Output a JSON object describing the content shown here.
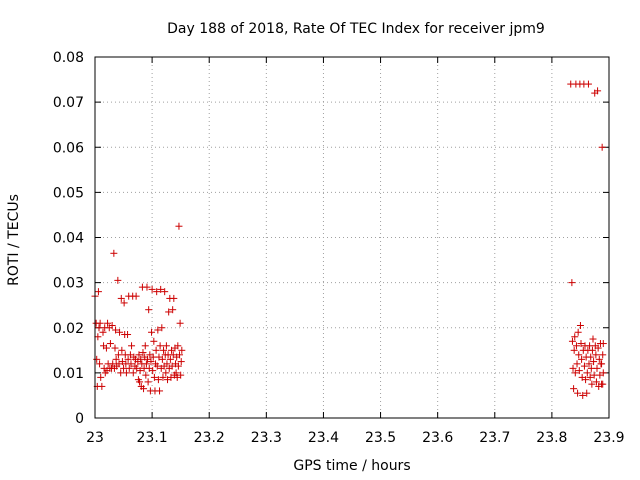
{
  "chart_data": {
    "type": "scatter",
    "title": "Day 188 of 2018, Rate Of TEC Index for receiver jpm9",
    "xlabel": "GPS time / hours",
    "ylabel": "ROTI / TECUs",
    "xlim": [
      23,
      23.9
    ],
    "ylim": [
      0,
      0.08
    ],
    "grid": true,
    "x_ticks": [
      {
        "value": 23.0,
        "label": "23"
      },
      {
        "value": 23.1,
        "label": "23.1"
      },
      {
        "value": 23.2,
        "label": "23.2"
      },
      {
        "value": 23.3,
        "label": "23.3"
      },
      {
        "value": 23.4,
        "label": "23.4"
      },
      {
        "value": 23.5,
        "label": "23.5"
      },
      {
        "value": 23.6,
        "label": "23.6"
      },
      {
        "value": 23.7,
        "label": "23.7"
      },
      {
        "value": 23.8,
        "label": "23.8"
      },
      {
        "value": 23.9,
        "label": "23.9"
      }
    ],
    "y_ticks": [
      {
        "value": 0.0,
        "label": "0"
      },
      {
        "value": 0.01,
        "label": "0.01"
      },
      {
        "value": 0.02,
        "label": "0.02"
      },
      {
        "value": 0.03,
        "label": "0.03"
      },
      {
        "value": 0.04,
        "label": "0.04"
      },
      {
        "value": 0.05,
        "label": "0.05"
      },
      {
        "value": 0.06,
        "label": "0.06"
      },
      {
        "value": 0.07,
        "label": "0.07"
      },
      {
        "value": 0.08,
        "label": "0.08"
      }
    ],
    "series": [
      {
        "name": "ROTI",
        "color": "#cc0000",
        "marker": "plus",
        "points": [
          [
            23.0,
            0.027
          ],
          [
            23.002,
            0.021
          ],
          [
            23.003,
            0.013
          ],
          [
            23.004,
            0.007
          ],
          [
            23.005,
            0.018
          ],
          [
            23.006,
            0.028
          ],
          [
            23.007,
            0.02
          ],
          [
            23.008,
            0.012
          ],
          [
            23.009,
            0.021
          ],
          [
            23.01,
            0.009
          ],
          [
            23.012,
            0.007
          ],
          [
            23.014,
            0.019
          ],
          [
            23.015,
            0.016
          ],
          [
            23.016,
            0.011
          ],
          [
            23.017,
            0.02
          ],
          [
            23.018,
            0.01
          ],
          [
            23.02,
            0.0155
          ],
          [
            23.021,
            0.0105
          ],
          [
            23.022,
            0.021
          ],
          [
            23.023,
            0.012
          ],
          [
            23.025,
            0.02
          ],
          [
            23.026,
            0.011
          ],
          [
            23.027,
            0.0165
          ],
          [
            23.029,
            0.011
          ],
          [
            23.03,
            0.0205
          ],
          [
            23.031,
            0.012
          ],
          [
            23.033,
            0.0365
          ],
          [
            23.034,
            0.011
          ],
          [
            23.035,
            0.0155
          ],
          [
            23.036,
            0.0195
          ],
          [
            23.037,
            0.013
          ],
          [
            23.038,
            0.0115
          ],
          [
            23.04,
            0.0305
          ],
          [
            23.041,
            0.014
          ],
          [
            23.042,
            0.012
          ],
          [
            23.043,
            0.019
          ],
          [
            23.045,
            0.01
          ],
          [
            23.046,
            0.0265
          ],
          [
            23.047,
            0.015
          ],
          [
            23.048,
            0.0125
          ],
          [
            23.05,
            0.011
          ],
          [
            23.051,
            0.0255
          ],
          [
            23.052,
            0.0185
          ],
          [
            23.053,
            0.014
          ],
          [
            23.054,
            0.012
          ],
          [
            23.055,
            0.01
          ],
          [
            23.057,
            0.0185
          ],
          [
            23.058,
            0.013
          ],
          [
            23.059,
            0.027
          ],
          [
            23.06,
            0.011
          ],
          [
            23.062,
            0.014
          ],
          [
            23.063,
            0.012
          ],
          [
            23.064,
            0.016
          ],
          [
            23.066,
            0.027
          ],
          [
            23.067,
            0.01
          ],
          [
            23.068,
            0.0135
          ],
          [
            23.07,
            0.0115
          ],
          [
            23.071,
            0.013
          ],
          [
            23.072,
            0.027
          ],
          [
            23.073,
            0.011
          ],
          [
            23.075,
            0.0125
          ],
          [
            23.076,
            0.0085
          ],
          [
            23.077,
            0.014
          ],
          [
            23.078,
            0.008
          ],
          [
            23.079,
            0.0105
          ],
          [
            23.08,
            0.013
          ],
          [
            23.081,
            0.007
          ],
          [
            23.082,
            0.012
          ],
          [
            23.083,
            0.029
          ],
          [
            23.084,
            0.0145
          ],
          [
            23.085,
            0.0065
          ],
          [
            23.086,
            0.011
          ],
          [
            23.087,
            0.0135
          ],
          [
            23.088,
            0.016
          ],
          [
            23.089,
            0.0095
          ],
          [
            23.09,
            0.012
          ],
          [
            23.091,
            0.029
          ],
          [
            23.092,
            0.013
          ],
          [
            23.093,
            0.008
          ],
          [
            23.094,
            0.024
          ],
          [
            23.095,
            0.011
          ],
          [
            23.096,
            0.014
          ],
          [
            23.097,
            0.006
          ],
          [
            23.098,
            0.0125
          ],
          [
            23.099,
            0.019
          ],
          [
            23.1,
            0.0285
          ],
          [
            23.101,
            0.0105
          ],
          [
            23.102,
            0.0135
          ],
          [
            23.103,
            0.017
          ],
          [
            23.104,
            0.009
          ],
          [
            23.105,
            0.006
          ],
          [
            23.106,
            0.012
          ],
          [
            23.107,
            0.015
          ],
          [
            23.108,
            0.028
          ],
          [
            23.109,
            0.0115
          ],
          [
            23.11,
            0.0195
          ],
          [
            23.111,
            0.0085
          ],
          [
            23.112,
            0.0135
          ],
          [
            23.113,
            0.006
          ],
          [
            23.114,
            0.016
          ],
          [
            23.115,
            0.0285
          ],
          [
            23.116,
            0.011
          ],
          [
            23.117,
            0.02
          ],
          [
            23.118,
            0.013
          ],
          [
            23.119,
            0.009
          ],
          [
            23.12,
            0.015
          ],
          [
            23.121,
            0.0115
          ],
          [
            23.122,
            0.028
          ],
          [
            23.123,
            0.014
          ],
          [
            23.124,
            0.01
          ],
          [
            23.125,
            0.016
          ],
          [
            23.126,
            0.012
          ],
          [
            23.127,
            0.0085
          ],
          [
            23.128,
            0.014
          ],
          [
            23.129,
            0.0235
          ],
          [
            23.13,
            0.011
          ],
          [
            23.131,
            0.0265
          ],
          [
            23.132,
            0.013
          ],
          [
            23.133,
            0.009
          ],
          [
            23.134,
            0.015
          ],
          [
            23.135,
            0.0115
          ],
          [
            23.136,
            0.024
          ],
          [
            23.137,
            0.014
          ],
          [
            23.138,
            0.0265
          ],
          [
            23.139,
            0.0095
          ],
          [
            23.14,
            0.0155
          ],
          [
            23.141,
            0.012
          ],
          [
            23.142,
            0.01
          ],
          [
            23.143,
            0.0135
          ],
          [
            23.144,
            0.009
          ],
          [
            23.145,
            0.016
          ],
          [
            23.146,
            0.0115
          ],
          [
            23.147,
            0.0425
          ],
          [
            23.148,
            0.014
          ],
          [
            23.149,
            0.021
          ],
          [
            23.15,
            0.0095
          ],
          [
            23.151,
            0.0125
          ],
          [
            23.152,
            0.015
          ],
          [
            23.833,
            0.074
          ],
          [
            23.835,
            0.03
          ],
          [
            23.836,
            0.017
          ],
          [
            23.837,
            0.011
          ],
          [
            23.838,
            0.0065
          ],
          [
            23.839,
            0.015
          ],
          [
            23.84,
            0.018
          ],
          [
            23.841,
            0.01
          ],
          [
            23.842,
            0.074
          ],
          [
            23.843,
            0.016
          ],
          [
            23.844,
            0.012
          ],
          [
            23.845,
            0.0055
          ],
          [
            23.846,
            0.019
          ],
          [
            23.847,
            0.014
          ],
          [
            23.848,
            0.0105
          ],
          [
            23.849,
            0.074
          ],
          [
            23.85,
            0.0205
          ],
          [
            23.851,
            0.0165
          ],
          [
            23.852,
            0.013
          ],
          [
            23.853,
            0.009
          ],
          [
            23.854,
            0.005
          ],
          [
            23.855,
            0.015
          ],
          [
            23.856,
            0.074
          ],
          [
            23.857,
            0.0115
          ],
          [
            23.858,
            0.016
          ],
          [
            23.859,
            0.0085
          ],
          [
            23.86,
            0.0135
          ],
          [
            23.861,
            0.0055
          ],
          [
            23.862,
            0.01
          ],
          [
            23.863,
            0.015
          ],
          [
            23.864,
            0.074
          ],
          [
            23.865,
            0.012
          ],
          [
            23.866,
            0.016
          ],
          [
            23.867,
            0.009
          ],
          [
            23.868,
            0.0135
          ],
          [
            23.869,
            0.011
          ],
          [
            23.87,
            0.0075
          ],
          [
            23.871,
            0.015
          ],
          [
            23.872,
            0.0175
          ],
          [
            23.873,
            0.0125
          ],
          [
            23.874,
            0.0095
          ],
          [
            23.875,
            0.072
          ],
          [
            23.876,
            0.016
          ],
          [
            23.877,
            0.014
          ],
          [
            23.878,
            0.008
          ],
          [
            23.879,
            0.011
          ],
          [
            23.88,
            0.0725
          ],
          [
            23.881,
            0.0155
          ],
          [
            23.882,
            0.007
          ],
          [
            23.883,
            0.013
          ],
          [
            23.884,
            0.0095
          ],
          [
            23.885,
            0.0165
          ],
          [
            23.886,
            0.012
          ],
          [
            23.887,
            0.0075
          ],
          [
            23.888,
            0.06
          ],
          [
            23.889,
            0.014
          ],
          [
            23.89,
            0.01
          ],
          [
            23.89,
            0.0165
          ],
          [
            23.889,
            0.0075
          ],
          [
            23.887,
            0.012
          ]
        ]
      }
    ]
  }
}
